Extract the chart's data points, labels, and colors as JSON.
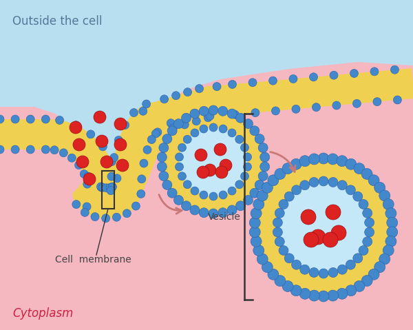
{
  "bg_outside_color": "#b8dff0",
  "bg_cytoplasm_color": "#f5b8c0",
  "membrane_yellow": "#f0d050",
  "membrane_blue": "#4488cc",
  "membrane_blue_dark": "#2a5fa8",
  "light_blue_interior": "#c5e8f8",
  "red_particle": "#dd2222",
  "arrow_color": "#c87878",
  "text_color_dark": "#444444",
  "text_color_red": "#cc2244",
  "outside_label": "Outside the cell",
  "cytoplasm_label": "Cytoplasm",
  "membrane_label": "Cell  membrane",
  "vesicle_label": "Vesicle",
  "fig_width": 6.0,
  "fig_height": 4.79,
  "dpi": 100
}
